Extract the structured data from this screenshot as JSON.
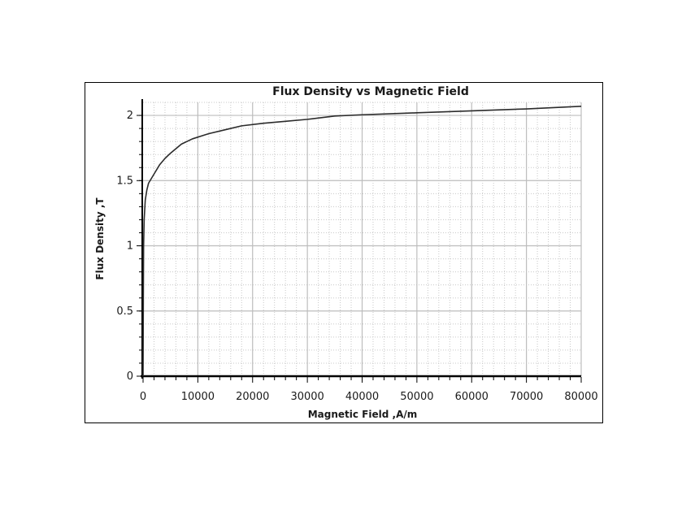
{
  "chart_data": {
    "type": "line",
    "title": "Flux Density vs Magnetic Field",
    "xlabel": "Magnetic Field ,A/m",
    "ylabel": "Flux Density ,T",
    "xlim": [
      0,
      80000
    ],
    "ylim": [
      0,
      2.1
    ],
    "xticks": [
      "0",
      "10000",
      "20000",
      "30000",
      "40000",
      "50000",
      "60000",
      "70000",
      "80000"
    ],
    "yticks": [
      "0",
      "0.5",
      "1",
      "1.5",
      "2"
    ],
    "grid": true,
    "series": [
      {
        "x": [
          0,
          50,
          100,
          200,
          400,
          700,
          1000,
          2000,
          3000,
          4000,
          5000,
          7000,
          9000,
          12000,
          15000,
          18000,
          22000,
          26000,
          30000,
          35000,
          40000,
          50000,
          60000,
          70000,
          80000
        ],
        "y": [
          0,
          0.6,
          1.0,
          1.2,
          1.35,
          1.43,
          1.48,
          1.55,
          1.62,
          1.67,
          1.71,
          1.78,
          1.82,
          1.86,
          1.89,
          1.92,
          1.94,
          1.955,
          1.97,
          1.995,
          2.005,
          2.02,
          2.035,
          2.05,
          2.07
        ],
        "color": "#2b2b2b"
      }
    ]
  }
}
